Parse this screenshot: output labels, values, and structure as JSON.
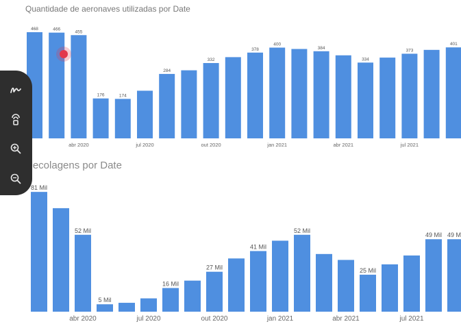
{
  "chart_data": [
    {
      "type": "bar",
      "title": "Quantidade de aeronaves utilizadas por Date",
      "categories": [
        "fev 2020",
        "mar 2020",
        "abr 2020",
        "mai 2020",
        "jun 2020",
        "jul 2020",
        "ago 2020",
        "set 2020",
        "out 2020",
        "nov 2020",
        "dez 2020",
        "jan 2021",
        "fev 2021",
        "mar 2021",
        "abr 2021",
        "mai 2021",
        "jun 2021",
        "jul 2021",
        "ago 2021",
        "set 2021"
      ],
      "values": [
        468,
        466,
        455,
        176,
        174,
        210,
        284,
        300,
        332,
        358,
        378,
        400,
        394,
        384,
        366,
        334,
        356,
        373,
        390,
        401
      ],
      "labels": [
        "468",
        "466",
        "455",
        "176",
        "174",
        "",
        "284",
        "",
        "332",
        "",
        "378",
        "400",
        "",
        "384",
        "",
        "334",
        "",
        "373",
        "",
        "401"
      ],
      "xticks": [
        "abr 2020",
        "jul 2020",
        "out 2020",
        "jan 2021",
        "abr 2021",
        "jul 2021"
      ],
      "xtick_indices": [
        2,
        5,
        8,
        11,
        14,
        17
      ],
      "ylim": [
        0,
        480
      ],
      "grid": false,
      "color": "#4f8fe0"
    },
    {
      "type": "bar",
      "title": "Decolagens por Date",
      "categories": [
        "fev 2020",
        "mar 2020",
        "abr 2020",
        "mai 2020",
        "jun 2020",
        "jul 2020",
        "ago 2020",
        "set 2020",
        "out 2020",
        "nov 2020",
        "dez 2020",
        "jan 2021",
        "fev 2021",
        "mar 2021",
        "abr 2021",
        "mai 2021",
        "jun 2021",
        "jul 2021",
        "ago 2021",
        "set 2021"
      ],
      "values": [
        81,
        70,
        52,
        5,
        6,
        9,
        16,
        21,
        27,
        36,
        41,
        48,
        52,
        39,
        35,
        25,
        32,
        38,
        49,
        49
      ],
      "labels": [
        "81 Mil",
        "",
        "52 Mil",
        "5 Mil",
        "",
        "",
        "16 Mil",
        "",
        "27 Mil",
        "",
        "41 Mil",
        "",
        "52 Mil",
        "",
        "",
        "25 Mil",
        "",
        "",
        "49 Mil",
        "49 Mil"
      ],
      "xticks": [
        "abr 2020",
        "jul 2020",
        "out 2020",
        "jan 2021",
        "abr 2021",
        "jul 2021"
      ],
      "xtick_indices": [
        2,
        5,
        8,
        11,
        14,
        17
      ],
      "ylim": [
        0,
        82
      ],
      "grid": false,
      "color": "#4f8fe0"
    }
  ],
  "toolbar": {
    "icons": [
      "pen-icon",
      "eraser-icon",
      "zoom-in-icon",
      "zoom-out-icon"
    ]
  }
}
